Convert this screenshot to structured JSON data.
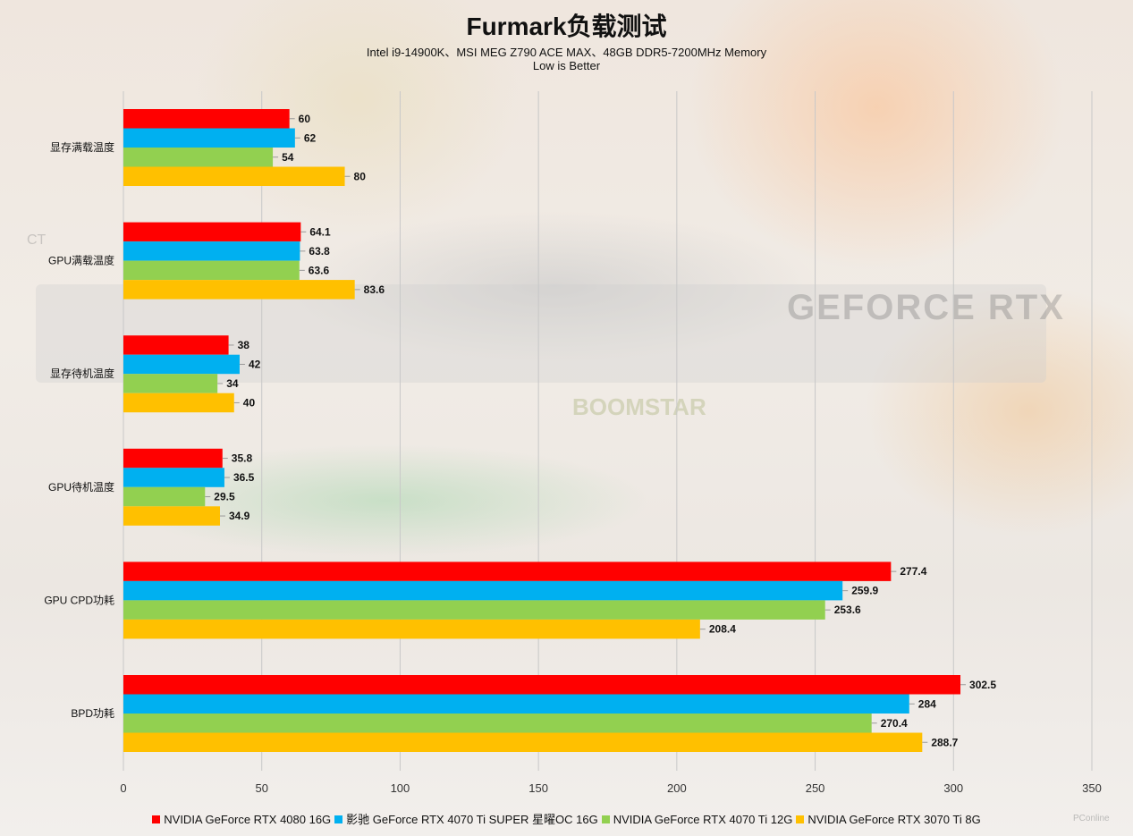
{
  "chart_data": {
    "type": "bar",
    "orientation": "horizontal",
    "title": "Furmark负载测试",
    "subtitle": "Intel i9-14900K、MSI MEG Z790 ACE MAX、48GB DDR5-7200MHz Memory",
    "note": "Low is Better",
    "categories": [
      "显存满载温度",
      "GPU满载温度",
      "显存待机温度",
      "GPU待机温度",
      "GPU CPD功耗",
      "BPD功耗"
    ],
    "series": [
      {
        "name": "NVIDIA GeForce RTX 4080 16G",
        "color": "#ff0000",
        "values": [
          60,
          64.1,
          38,
          35.8,
          277.4,
          302.5
        ]
      },
      {
        "name": "影驰 GeForce RTX 4070 Ti SUPER 星曜OC 16G",
        "color": "#00b0f0",
        "values": [
          62,
          63.8,
          42,
          36.5,
          259.9,
          284
        ]
      },
      {
        "name": "NVIDIA GeForce RTX 4070 Ti 12G",
        "color": "#92d050",
        "values": [
          54,
          63.6,
          34,
          29.5,
          253.6,
          270.4
        ]
      },
      {
        "name": "NVIDIA GeForce RTX 3070 Ti 8G",
        "color": "#ffc000",
        "values": [
          80,
          83.6,
          40,
          34.9,
          208.4,
          288.7
        ]
      }
    ],
    "value_labels": [
      [
        "60",
        "64.1",
        "38",
        "35.8",
        "277.4",
        "302.5"
      ],
      [
        "62",
        "63.8",
        "42",
        "36.5",
        "259.9",
        "284"
      ],
      [
        "54",
        "63.6",
        "34",
        "29.5",
        "253.6",
        "270.4"
      ],
      [
        "80",
        "83.6",
        "40",
        "34.9",
        "208.4",
        "288.7"
      ]
    ],
    "xlim": [
      0,
      350
    ],
    "xticks": [
      "0",
      "50",
      "100",
      "150",
      "200",
      "250",
      "300",
      "350"
    ],
    "grid": true,
    "legend_position": "bottom"
  },
  "watermark": "PConline"
}
